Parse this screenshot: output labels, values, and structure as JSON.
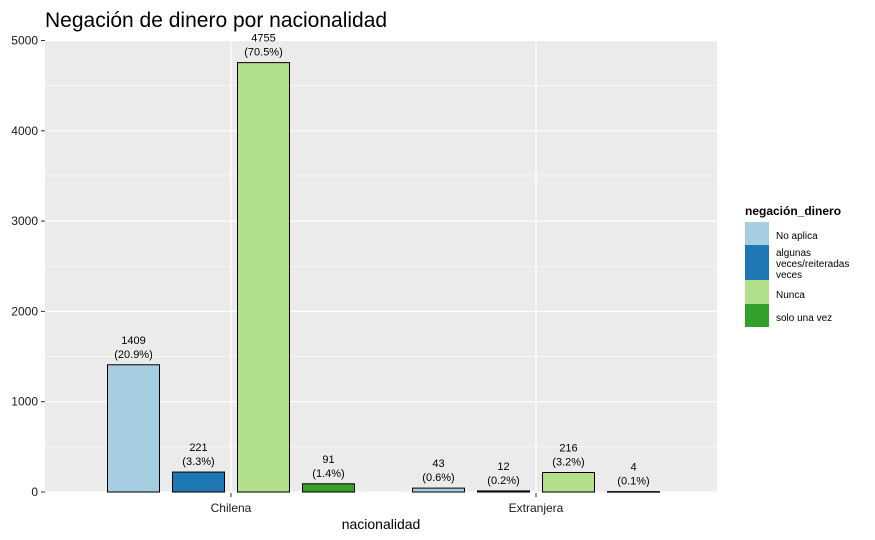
{
  "chart_data": {
    "type": "bar",
    "title": "Negación de dinero por nacionalidad",
    "xlabel": "nacionalidad",
    "ylabel": "",
    "ylim": [
      0,
      5000
    ],
    "yticks": [
      "0",
      "1000",
      "2000",
      "3000",
      "4000",
      "5000"
    ],
    "categories": [
      "Chilena",
      "Extranjera"
    ],
    "grid": true,
    "legend": {
      "title": "negación_dinero",
      "placement": "right",
      "entries": [
        "No aplica",
        "algunas veces/reiteradas veces",
        "Nunca",
        "solo una vez"
      ]
    },
    "series": [
      {
        "name": "No aplica",
        "color": "#a6cee3",
        "values": [
          1409,
          43
        ],
        "labels": [
          "1409",
          "43"
        ],
        "pct": [
          "(20.9%)",
          "(0.6%)"
        ]
      },
      {
        "name": "algunas veces/reiteradas veces",
        "color": "#1f78b4",
        "values": [
          221,
          12
        ],
        "labels": [
          "221",
          "12"
        ],
        "pct": [
          "(3.3%)",
          "(0.2%)"
        ]
      },
      {
        "name": "Nunca",
        "color": "#b2df8a",
        "values": [
          4755,
          216
        ],
        "labels": [
          "4755",
          "216"
        ],
        "pct": [
          "(70.5%)",
          "(3.2%)"
        ]
      },
      {
        "name": "solo una vez",
        "color": "#33a02c",
        "values": [
          91,
          4
        ],
        "labels": [
          "91",
          "4"
        ],
        "pct": [
          "(1.4%)",
          "(0.1%)"
        ]
      }
    ]
  }
}
